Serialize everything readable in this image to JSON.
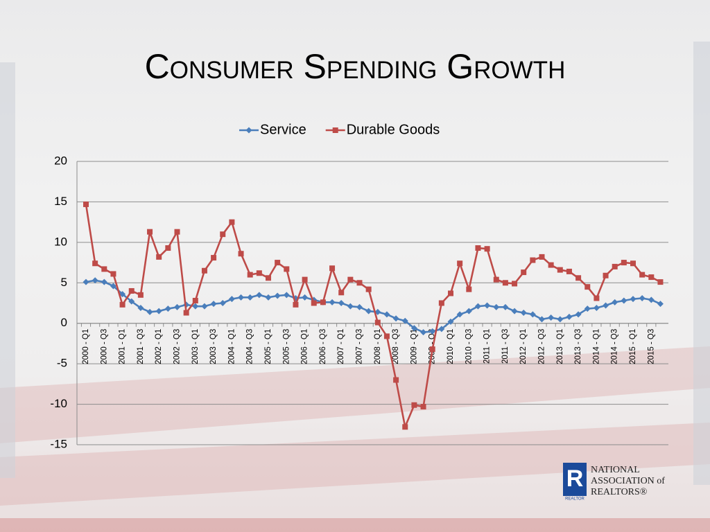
{
  "title": "Consumer Spending Growth",
  "logo": {
    "mark": "R",
    "sub": "REALTOR",
    "lines": [
      "NATIONAL",
      "ASSOCIATION of",
      "REALTORS®"
    ]
  },
  "chart_data": {
    "type": "line",
    "categories": [
      "2000 - Q1",
      null,
      "2000 - Q3",
      null,
      "2001 - Q1",
      null,
      "2001 - Q3",
      null,
      "2002 - Q1",
      null,
      "2002 - Q3",
      null,
      "2003 - Q1",
      null,
      "2003 - Q3",
      null,
      "2004 - Q1",
      null,
      "2004 - Q3",
      null,
      "2005 - Q1",
      null,
      "2005 - Q3",
      null,
      "2006 - Q1",
      null,
      "2006 - Q3",
      null,
      "2007 - Q1",
      null,
      "2007 - Q3",
      null,
      "2008 - Q1",
      null,
      "2008 - Q3",
      null,
      "2009 - Q1",
      null,
      "2009 - Q3",
      null,
      "2010 - Q1",
      null,
      "2010 - Q3",
      null,
      "2011 - Q1",
      null,
      "2011 - Q3",
      null,
      "2012 - Q1",
      null,
      "2012 - Q3",
      null,
      "2013 - Q1",
      null,
      "2013 - Q3",
      null,
      "2014 - Q1",
      null,
      "2014 - Q3",
      null,
      "2015 - Q1",
      null,
      "2015 - Q3",
      null
    ],
    "series": [
      {
        "name": "Service",
        "color": "#4a7ebb",
        "marker": "diamond",
        "values": [
          5.1,
          5.3,
          5.1,
          4.6,
          3.6,
          2.7,
          1.9,
          1.4,
          1.5,
          1.8,
          2.0,
          2.3,
          2.1,
          2.1,
          2.4,
          2.5,
          3.0,
          3.2,
          3.2,
          3.5,
          3.2,
          3.4,
          3.5,
          3.1,
          3.2,
          2.9,
          2.6,
          2.6,
          2.5,
          2.1,
          2.0,
          1.5,
          1.4,
          1.1,
          0.6,
          0.3,
          -0.6,
          -1.1,
          -1.0,
          -0.7,
          0.2,
          1.1,
          1.5,
          2.1,
          2.2,
          2.0,
          2.0,
          1.5,
          1.3,
          1.1,
          0.5,
          0.7,
          0.5,
          0.8,
          1.1,
          1.8,
          1.9,
          2.2,
          2.6,
          2.8,
          3.0,
          3.1,
          2.9,
          2.4
        ]
      },
      {
        "name": "Durable Goods",
        "color": "#be4b48",
        "marker": "square",
        "values": [
          14.7,
          7.4,
          6.7,
          6.1,
          2.3,
          4.0,
          3.5,
          11.3,
          8.2,
          9.3,
          11.3,
          1.3,
          2.8,
          6.5,
          8.1,
          11.0,
          12.5,
          8.6,
          6.0,
          6.2,
          5.6,
          7.5,
          6.7,
          2.3,
          5.4,
          2.5,
          2.6,
          6.8,
          3.8,
          5.4,
          5.0,
          4.2,
          0.1,
          -1.6,
          -7.0,
          -12.8,
          -10.1,
          -10.3,
          -3.2,
          2.5,
          3.7,
          7.4,
          4.2,
          9.3,
          9.2,
          5.4,
          5.0,
          4.9,
          6.3,
          7.8,
          8.2,
          7.2,
          6.6,
          6.4,
          5.6,
          4.5,
          3.1,
          5.9,
          7.0,
          7.5,
          7.4,
          6.0,
          5.7,
          5.1
        ]
      }
    ],
    "ylim": [
      -15,
      20
    ],
    "yticks": [
      -15,
      -10,
      -5,
      0,
      5,
      10,
      15,
      20
    ],
    "grid": true,
    "legend": "top"
  }
}
